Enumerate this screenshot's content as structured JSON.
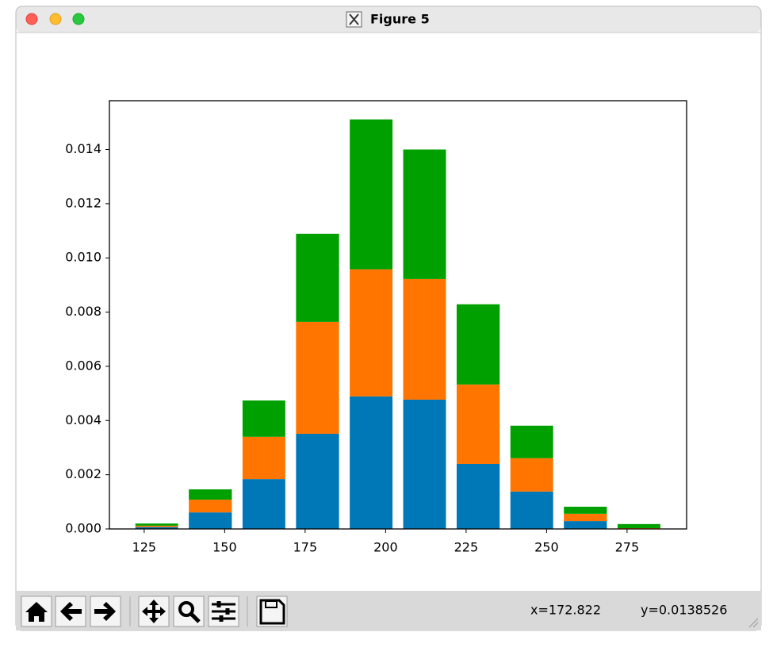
{
  "window": {
    "title": "Figure 5"
  },
  "status": {
    "x": "x=172.822",
    "y": "y=0.0138526"
  },
  "chart_data": {
    "type": "stacked-histogram",
    "bins": [
      120.6,
      137.2,
      153.9,
      170.5,
      187.2,
      203.8,
      220.4,
      237.1,
      253.7,
      270.4,
      287.0
    ],
    "rwidth": 0.8,
    "series": [
      {
        "color": "#0077b6",
        "values": [
          7e-05,
          0.00061,
          0.00184,
          0.00351,
          0.00489,
          0.00477,
          0.0024,
          0.00138,
          0.00029,
          1e-05
        ]
      },
      {
        "color": "#ff7500",
        "values": [
          5e-05,
          0.00047,
          0.00156,
          0.00413,
          0.00469,
          0.00445,
          0.00293,
          0.00123,
          0.00027,
          2e-05
        ]
      },
      {
        "color": "#00a000",
        "values": [
          8e-05,
          0.00038,
          0.00134,
          0.00325,
          0.00553,
          0.00478,
          0.00296,
          0.0012,
          0.00026,
          0.00015
        ]
      }
    ],
    "xlim": [
      114.2,
      293.5
    ],
    "xticks": [
      125,
      150,
      175,
      200,
      225,
      250,
      275
    ],
    "ylim": [
      0,
      0.0158
    ],
    "yticks": [
      {
        "value": 0,
        "label": "0.000"
      },
      {
        "value": 0.002,
        "label": "0.002"
      },
      {
        "value": 0.004,
        "label": "0.004"
      },
      {
        "value": 0.006,
        "label": "0.006"
      },
      {
        "value": 0.008,
        "label": "0.008"
      },
      {
        "value": 0.01,
        "label": "0.010"
      },
      {
        "value": 0.012,
        "label": "0.012"
      },
      {
        "value": 0.014,
        "label": "0.014"
      }
    ],
    "grid": false
  }
}
